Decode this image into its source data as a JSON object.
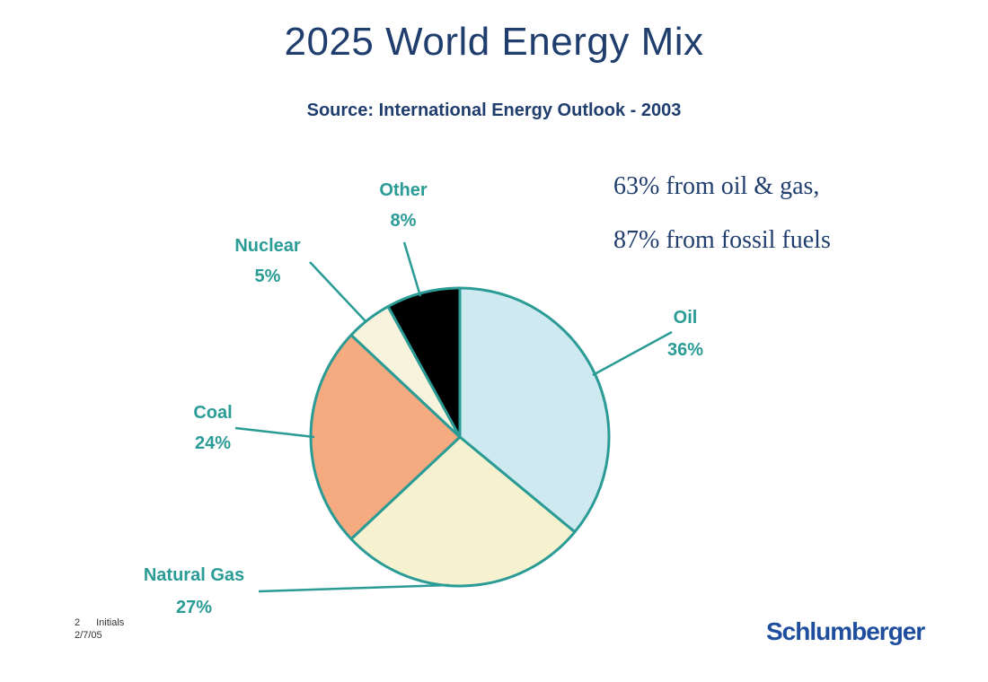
{
  "chart_data": {
    "type": "pie",
    "title": "2025 World Energy Mix",
    "subtitle": "Source: International Energy Outlook - 2003",
    "slices": [
      {
        "name": "Oil",
        "value": 36,
        "label": "36%",
        "color": "#cfe9f1"
      },
      {
        "name": "Natural Gas",
        "value": 27,
        "label": "27%",
        "color": "#f6f1cf"
      },
      {
        "name": "Coal",
        "value": 24,
        "label": "24%",
        "color": "#f5aa80"
      },
      {
        "name": "Nuclear",
        "value": 5,
        "label": "5%",
        "color": "#f8f3dc"
      },
      {
        "name": "Other",
        "value": 8,
        "label": "8%",
        "color": "#000000"
      }
    ],
    "annotations": [
      "63% from oil & gas,",
      "87% from fossil fuels"
    ]
  },
  "footer": {
    "page_number": "2",
    "initials": "Initials",
    "date": "2/7/05"
  },
  "logo_text": "Schlumberger",
  "colors": {
    "title": "#1f3e6e",
    "label": "#2a9b95",
    "outline": "#2a9b95",
    "logo": "#1f4e9e"
  }
}
